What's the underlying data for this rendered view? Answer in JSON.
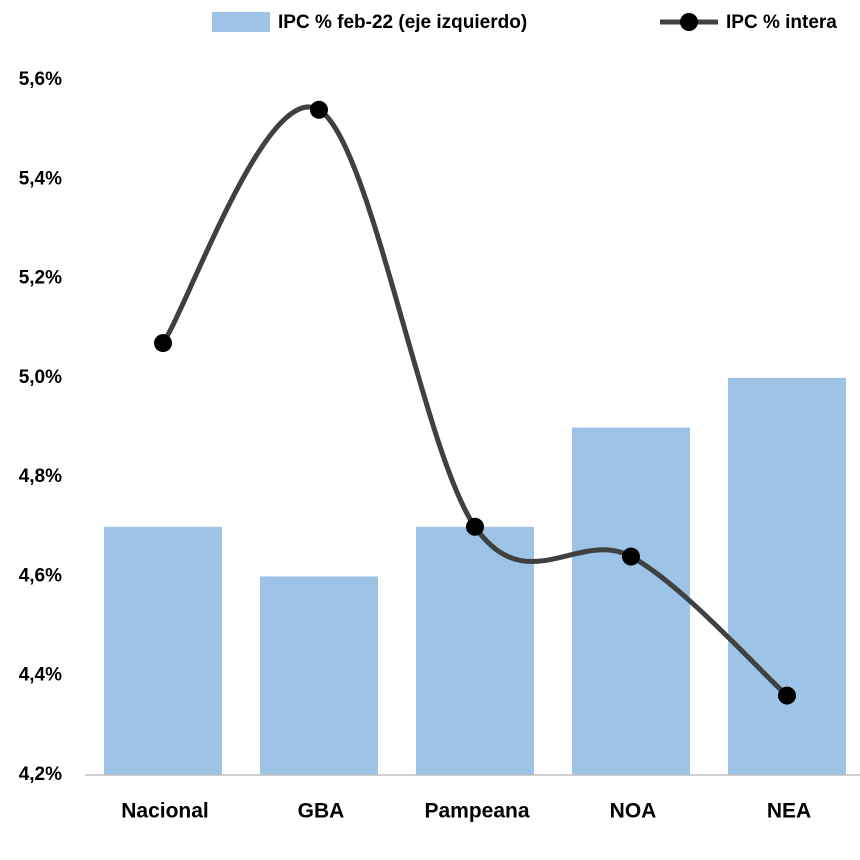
{
  "chart_data": {
    "type": "bar",
    "categories": [
      "Nacional",
      "GBA",
      "Pampeana",
      "NOA",
      "NEA"
    ],
    "ylim": [
      4.2,
      5.6
    ],
    "yticks": [
      {
        "value": 4.2,
        "label": "4,2%"
      },
      {
        "value": 4.4,
        "label": "4,4%"
      },
      {
        "value": 4.6,
        "label": "4,6%"
      },
      {
        "value": 4.8,
        "label": "4,8%"
      },
      {
        "value": 5.0,
        "label": "5,0%"
      },
      {
        "value": 5.2,
        "label": "5,2%"
      },
      {
        "value": 5.4,
        "label": "5,4%"
      },
      {
        "value": 5.6,
        "label": "5,6%"
      }
    ],
    "grid": false,
    "legend": "top",
    "series": [
      {
        "name": "IPC % feb-22 (eje izquierdo)",
        "type": "bar",
        "color": "#9dc3e6",
        "values": [
          4.7,
          4.6,
          4.7,
          4.9,
          5.0
        ]
      },
      {
        "name": "IPC % intera",
        "type": "line",
        "color": "#404040",
        "values": [
          5.07,
          5.54,
          4.7,
          4.64,
          4.36
        ]
      }
    ]
  }
}
